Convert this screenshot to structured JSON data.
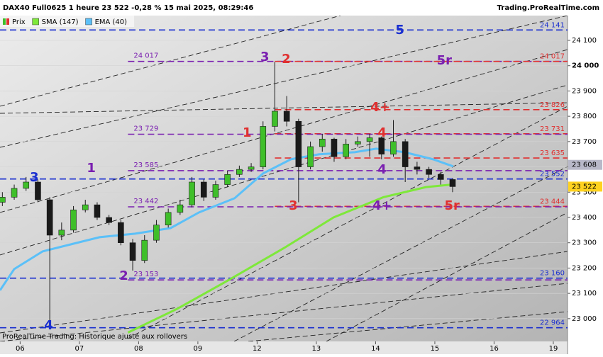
{
  "chart_data": {
    "type": "candlestick",
    "title": "DAX40 Full0625 1 heure 23 522 -0,28 % 15 mai 2025, 08:29:46",
    "source": "Trading.ProRealTime.com",
    "footnote": "ProRealTime Trading: Historique ajusté aux rollovers",
    "categories": [
      "06",
      "07",
      "08",
      "09",
      "12",
      "13",
      "14",
      "15",
      "16",
      "19"
    ],
    "xlim": [
      -0.34,
      9.24
    ],
    "ylim": [
      22910,
      24198
    ],
    "yticks": [
      {
        "value": 24100,
        "label": "24 100"
      },
      {
        "value": 24000,
        "label": "24 000"
      },
      {
        "value": 23900,
        "label": "23 900"
      },
      {
        "value": 23800,
        "label": "23 800"
      },
      {
        "value": 23700,
        "label": "23 700"
      },
      {
        "value": 23600,
        "label": "23 600"
      },
      {
        "value": 23500,
        "label": "23 500"
      },
      {
        "value": 23400,
        "label": "23 400"
      },
      {
        "value": 23300,
        "label": "23 300"
      },
      {
        "value": 23200,
        "label": "23 200"
      },
      {
        "value": 23100,
        "label": "23 100"
      },
      {
        "value": 23000,
        "label": "23 000"
      }
    ],
    "grid": true,
    "ohlc": {
      "name": "Prix",
      "up_color": "#3fbf2a",
      "down_color": "#1a1a1a",
      "x": [
        -0.3,
        -0.1,
        0.1,
        0.3,
        0.5,
        0.7,
        0.9,
        1.1,
        1.3,
        1.5,
        1.7,
        1.9,
        2.1,
        2.3,
        2.5,
        2.7,
        2.9,
        3.1,
        3.3,
        3.5,
        3.7,
        3.9,
        4.1,
        4.3,
        4.5,
        4.7,
        4.9,
        5.1,
        5.3,
        5.5,
        5.7,
        5.9,
        6.1,
        6.3,
        6.5,
        6.7,
        6.9,
        7.1,
        7.3
      ],
      "open": [
        23460,
        23480,
        23515,
        23540,
        23470,
        23330,
        23350,
        23430,
        23450,
        23400,
        23380,
        23300,
        23230,
        23310,
        23370,
        23420,
        23450,
        23540,
        23480,
        23530,
        23570,
        23590,
        23600,
        23760,
        23820,
        23780,
        23600,
        23680,
        23710,
        23640,
        23690,
        23700,
        23715,
        23650,
        23700,
        23600,
        23590,
        23570,
        23550
      ],
      "high": [
        23500,
        23530,
        23560,
        23550,
        23480,
        23380,
        23445,
        23470,
        23460,
        23410,
        23390,
        23315,
        23330,
        23390,
        23435,
        23470,
        23560,
        23550,
        23545,
        23585,
        23605,
        23615,
        23780,
        24015,
        23880,
        23790,
        23700,
        23730,
        23715,
        23710,
        23720,
        23730,
        23720,
        23785,
        23710,
        23620,
        23600,
        23580,
        23555
      ],
      "low": [
        23445,
        23470,
        23505,
        23460,
        22975,
        23310,
        23340,
        23420,
        23390,
        23370,
        23290,
        23190,
        23220,
        23300,
        23360,
        23410,
        23440,
        23465,
        23470,
        23520,
        23560,
        23580,
        23590,
        23740,
        23760,
        23460,
        23590,
        23660,
        23620,
        23630,
        23680,
        23640,
        23630,
        23640,
        23540,
        23570,
        23555,
        23530,
        23500
      ],
      "close": [
        23480,
        23515,
        23540,
        23470,
        23330,
        23350,
        23430,
        23450,
        23400,
        23380,
        23300,
        23230,
        23310,
        23370,
        23420,
        23450,
        23540,
        23480,
        23530,
        23570,
        23590,
        23600,
        23760,
        23820,
        23780,
        23600,
        23680,
        23710,
        23640,
        23690,
        23700,
        23715,
        23650,
        23700,
        23600,
        23590,
        23570,
        23550,
        23522
      ]
    },
    "series": [
      {
        "name": "SMA (147)",
        "color": "#7ee83a",
        "x": [
          1.82,
          2.66,
          3.5,
          4.46,
          5.29,
          6.13,
          6.85,
          7.28
        ],
        "values": [
          22945,
          23040,
          23150,
          23280,
          23400,
          23480,
          23520,
          23530
        ]
      },
      {
        "name": "EMA (40)",
        "color": "#5bc0f8",
        "x": [
          -0.34,
          -0.1,
          0.38,
          0.86,
          1.34,
          1.94,
          2.54,
          3.02,
          3.62,
          4.1,
          4.57,
          5.05,
          5.65,
          6.01,
          6.49,
          6.97,
          7.31
        ],
        "values": [
          23112,
          23196,
          23266,
          23294,
          23322,
          23336,
          23358,
          23420,
          23476,
          23574,
          23630,
          23650,
          23658,
          23672,
          23658,
          23630,
          23602
        ]
      }
    ],
    "levels": [
      {
        "value": 24141,
        "label": "24 141",
        "color": "#1a2fd0",
        "side": "right",
        "start": -0.34
      },
      {
        "value": 24017,
        "label": "24 017",
        "color": "#7a1fb0",
        "side": "left",
        "start": 1.82
      },
      {
        "value": 24017,
        "label": "24 017",
        "color": "#e03030",
        "side": "right",
        "start": 4.3
      },
      {
        "value": 23826,
        "label": "23 826",
        "color": "#e03030",
        "side": "right",
        "start": 4.3
      },
      {
        "value": 23731,
        "label": "23 731",
        "color": "#e03030",
        "side": "right",
        "start": 4.3
      },
      {
        "value": 23729,
        "label": "23 729",
        "color": "#7a1fb0",
        "side": "left",
        "start": 1.82
      },
      {
        "value": 23635,
        "label": "23 635",
        "color": "#e03030",
        "side": "right",
        "start": 4.3
      },
      {
        "value": 23585,
        "label": "23 585",
        "color": "#7a1fb0",
        "side": "left",
        "start": 1.82
      },
      {
        "value": 23552,
        "label": "23 552",
        "color": "#1a2fd0",
        "side": "right",
        "start": -0.34
      },
      {
        "value": 23444,
        "label": "23 444",
        "color": "#e03030",
        "side": "right",
        "start": 4.3
      },
      {
        "value": 23442,
        "label": "23 442",
        "color": "#7a1fb0",
        "side": "left",
        "start": 1.82
      },
      {
        "value": 23160,
        "label": "23 160",
        "color": "#1a2fd0",
        "side": "right",
        "start": -0.34
      },
      {
        "value": 23153,
        "label": "23 153",
        "color": "#7a1fb0",
        "side": "left",
        "start": 1.82
      },
      {
        "value": 22964,
        "label": "22 964",
        "color": "#1a2fd0",
        "side": "right",
        "start": -0.34
      }
    ],
    "annotations": [
      {
        "text": "3",
        "x": 0.24,
        "y": 23557,
        "color": "#1a2fd0"
      },
      {
        "text": "4",
        "x": 0.48,
        "y": 22972,
        "color": "#1a2fd0"
      },
      {
        "text": "1",
        "x": 1.2,
        "y": 23593,
        "color": "#7a1fb0"
      },
      {
        "text": "2",
        "x": 1.75,
        "y": 23168,
        "color": "#7a1fb0"
      },
      {
        "text": "3",
        "x": 4.13,
        "y": 24033,
        "color": "#7a1fb0"
      },
      {
        "text": "2",
        "x": 4.49,
        "y": 24024,
        "color": "#e03030"
      },
      {
        "text": "1",
        "x": 3.83,
        "y": 23733,
        "color": "#e03030"
      },
      {
        "text": "3",
        "x": 4.61,
        "y": 23445,
        "color": "#e03030"
      },
      {
        "text": "4+",
        "x": 6.08,
        "y": 23834,
        "color": "#e03030"
      },
      {
        "text": "4",
        "x": 6.11,
        "y": 23733,
        "color": "#e03030"
      },
      {
        "text": "4",
        "x": 6.11,
        "y": 23588,
        "color": "#7a1fb0"
      },
      {
        "text": "4+",
        "x": 6.11,
        "y": 23445,
        "color": "#7a1fb0"
      },
      {
        "text": "5r",
        "x": 7.29,
        "y": 23445,
        "color": "#e03030"
      },
      {
        "text": "5r",
        "x": 7.16,
        "y": 24019,
        "color": "#7a1fb0"
      },
      {
        "text": "5",
        "x": 6.41,
        "y": 24139,
        "color": "#1a2fd0"
      }
    ],
    "price_tags": [
      {
        "value": 23608,
        "label": "23 608",
        "color": "#b8b8c8"
      },
      {
        "value": 23522,
        "label": "23 522",
        "color": "#ffd21f"
      }
    ]
  }
}
